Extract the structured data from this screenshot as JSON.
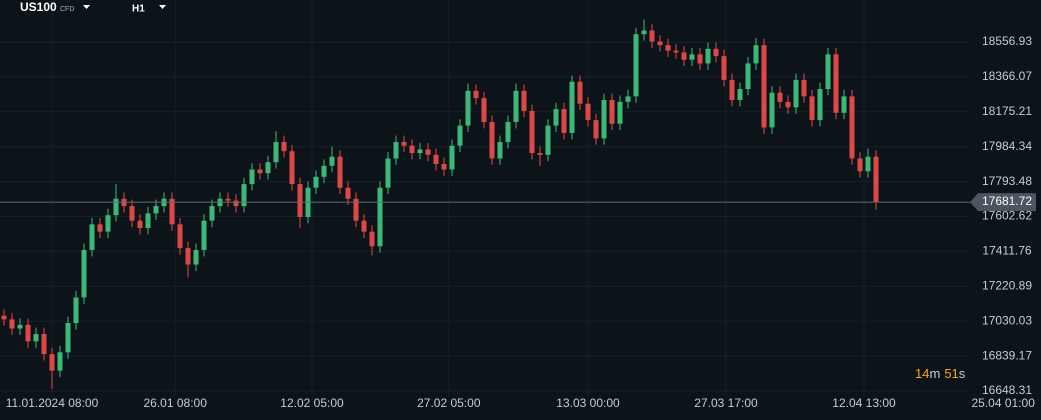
{
  "header": {
    "symbol": "US100",
    "instrument_type": "CFD",
    "timeframe": "H1"
  },
  "countdown": {
    "minutes": "14",
    "minutes_unit": "m",
    "seconds": "51",
    "seconds_unit": "s"
  },
  "chart_data": {
    "type": "candlestick",
    "up_color": "#3cb878",
    "down_color": "#e04848",
    "grid": true,
    "ylim": [
      16621,
      18787
    ],
    "yticks": [
      18556.93,
      18366.07,
      18175.21,
      17984.34,
      17793.48,
      17602.62,
      17411.76,
      17220.89,
      17030.03,
      16839.17,
      16648.31
    ],
    "xticks": [
      {
        "value": 6,
        "label": "11.01.2024  08:00"
      },
      {
        "value": 21.4,
        "label": "26.01  08:00"
      },
      {
        "value": 38.5,
        "label": "12.02  05:00"
      },
      {
        "value": 55.6,
        "label": "27.02  05:00"
      },
      {
        "value": 73,
        "label": "13.03  00:00"
      },
      {
        "value": 90.25,
        "label": "27.03  17:00"
      },
      {
        "value": 107.5,
        "label": "12.04  13:00"
      },
      {
        "value": 124.9,
        "label": "25.04  01:00"
      }
    ],
    "current_price": 17681.72,
    "candles": [
      [
        17060,
        17095,
        17005,
        17040
      ],
      [
        17040,
        17075,
        16955,
        16990
      ],
      [
        16990,
        17045,
        16955,
        17010
      ],
      [
        17010,
        17045,
        16885,
        16920
      ],
      [
        16920,
        16995,
        16885,
        16960
      ],
      [
        16960,
        16995,
        16815,
        16850
      ],
      [
        16850,
        16885,
        16660,
        16760
      ],
      [
        16760,
        16895,
        16725,
        16860
      ],
      [
        16860,
        17055,
        16825,
        17020
      ],
      [
        17020,
        17195,
        16985,
        17160
      ],
      [
        17160,
        17455,
        17125,
        17420
      ],
      [
        17420,
        17595,
        17385,
        17560
      ],
      [
        17560,
        17595,
        17485,
        17520
      ],
      [
        17520,
        17645,
        17485,
        17610
      ],
      [
        17610,
        17780,
        17575,
        17700
      ],
      [
        17700,
        17735,
        17625,
        17660
      ],
      [
        17660,
        17695,
        17545,
        17580
      ],
      [
        17580,
        17615,
        17505,
        17540
      ],
      [
        17540,
        17655,
        17505,
        17620
      ],
      [
        17620,
        17695,
        17585,
        17660
      ],
      [
        17660,
        17735,
        17625,
        17700
      ],
      [
        17700,
        17735,
        17525,
        17560
      ],
      [
        17560,
        17595,
        17395,
        17430
      ],
      [
        17430,
        17465,
        17270,
        17340
      ],
      [
        17340,
        17455,
        17305,
        17420
      ],
      [
        17420,
        17615,
        17385,
        17580
      ],
      [
        17580,
        17695,
        17545,
        17660
      ],
      [
        17660,
        17735,
        17625,
        17700
      ],
      [
        17700,
        17735,
        17655,
        17690
      ],
      [
        17690,
        17725,
        17625,
        17660
      ],
      [
        17660,
        17815,
        17625,
        17780
      ],
      [
        17780,
        17895,
        17745,
        17860
      ],
      [
        17860,
        17895,
        17805,
        17840
      ],
      [
        17840,
        17935,
        17805,
        17900
      ],
      [
        17900,
        18070,
        17865,
        18010
      ],
      [
        18010,
        18045,
        17925,
        17960
      ],
      [
        17960,
        17995,
        17745,
        17780
      ],
      [
        17780,
        17815,
        17540,
        17600
      ],
      [
        17600,
        17795,
        17565,
        17760
      ],
      [
        17760,
        17855,
        17725,
        17820
      ],
      [
        17820,
        17915,
        17785,
        17880
      ],
      [
        17880,
        17985,
        17845,
        17930
      ],
      [
        17930,
        17965,
        17725,
        17760
      ],
      [
        17760,
        17795,
        17665,
        17700
      ],
      [
        17700,
        17735,
        17545,
        17580
      ],
      [
        17580,
        17615,
        17485,
        17520
      ],
      [
        17520,
        17555,
        17390,
        17440
      ],
      [
        17440,
        17795,
        17405,
        17760
      ],
      [
        17760,
        17955,
        17725,
        17920
      ],
      [
        17920,
        18045,
        17885,
        18010
      ],
      [
        18010,
        18045,
        17955,
        17990
      ],
      [
        17990,
        18025,
        17915,
        17950
      ],
      [
        17950,
        18005,
        17915,
        17970
      ],
      [
        17970,
        18005,
        17905,
        17940
      ],
      [
        17940,
        17975,
        17855,
        17890
      ],
      [
        17890,
        17925,
        17825,
        17860
      ],
      [
        17860,
        18025,
        17825,
        17990
      ],
      [
        17990,
        18135,
        17955,
        18100
      ],
      [
        18100,
        18330,
        18065,
        18290
      ],
      [
        18290,
        18325,
        18215,
        18250
      ],
      [
        18250,
        18285,
        18085,
        18120
      ],
      [
        18120,
        18155,
        17885,
        17920
      ],
      [
        17920,
        18045,
        17885,
        18010
      ],
      [
        18010,
        18155,
        17975,
        18120
      ],
      [
        18120,
        18330,
        18085,
        18290
      ],
      [
        18290,
        18325,
        18145,
        18180
      ],
      [
        18180,
        18215,
        17915,
        17950
      ],
      [
        17950,
        17985,
        17880,
        17940
      ],
      [
        17940,
        18135,
        17905,
        18100
      ],
      [
        18100,
        18225,
        18065,
        18190
      ],
      [
        18190,
        18225,
        18025,
        18060
      ],
      [
        18060,
        18375,
        18025,
        18340
      ],
      [
        18340,
        18375,
        18185,
        18220
      ],
      [
        18220,
        18255,
        18095,
        18130
      ],
      [
        18130,
        18165,
        17995,
        18030
      ],
      [
        18030,
        18275,
        17995,
        18240
      ],
      [
        18240,
        18275,
        18075,
        18110
      ],
      [
        18110,
        18265,
        18075,
        18230
      ],
      [
        18230,
        18295,
        18195,
        18260
      ],
      [
        18260,
        18635,
        18225,
        18600
      ],
      [
        18600,
        18680,
        18565,
        18620
      ],
      [
        18620,
        18655,
        18525,
        18560
      ],
      [
        18560,
        18595,
        18505,
        18540
      ],
      [
        18540,
        18575,
        18475,
        18510
      ],
      [
        18510,
        18545,
        18465,
        18500
      ],
      [
        18500,
        18535,
        18425,
        18460
      ],
      [
        18460,
        18525,
        18425,
        18490
      ],
      [
        18490,
        18525,
        18405,
        18440
      ],
      [
        18440,
        18555,
        18405,
        18520
      ],
      [
        18520,
        18555,
        18445,
        18480
      ],
      [
        18480,
        18515,
        18315,
        18350
      ],
      [
        18350,
        18385,
        18205,
        18240
      ],
      [
        18240,
        18335,
        18205,
        18300
      ],
      [
        18300,
        18475,
        18265,
        18440
      ],
      [
        18440,
        18580,
        18405,
        18540
      ],
      [
        18540,
        18575,
        18055,
        18090
      ],
      [
        18090,
        18315,
        18055,
        18280
      ],
      [
        18280,
        18315,
        18195,
        18230
      ],
      [
        18230,
        18265,
        18165,
        18200
      ],
      [
        18200,
        18385,
        18165,
        18350
      ],
      [
        18350,
        18385,
        18225,
        18260
      ],
      [
        18260,
        18295,
        18095,
        18130
      ],
      [
        18130,
        18335,
        18095,
        18300
      ],
      [
        18300,
        18525,
        18265,
        18490
      ],
      [
        18490,
        18525,
        18135,
        18170
      ],
      [
        18170,
        18295,
        18135,
        18260
      ],
      [
        18260,
        18295,
        17885,
        17920
      ],
      [
        17920,
        17955,
        17815,
        17850
      ],
      [
        17850,
        17975,
        17815,
        17930
      ],
      [
        17930,
        17965,
        17640,
        17681.72
      ]
    ]
  }
}
